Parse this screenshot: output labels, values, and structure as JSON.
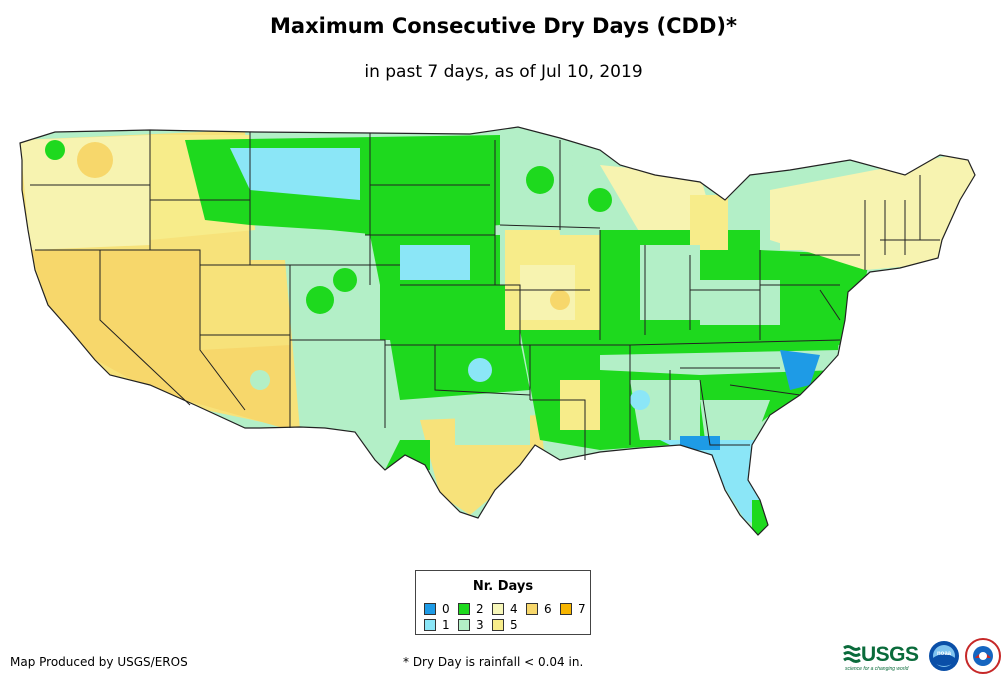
{
  "title": "Maximum Consecutive Dry Days (CDD)*",
  "subtitle": "in past 7 days, as of Jul 10, 2019",
  "legend": {
    "title": "Nr. Days",
    "items": [
      {
        "label": "0",
        "color": "#1e9be6"
      },
      {
        "label": "1",
        "color": "#8be6f7"
      },
      {
        "label": "2",
        "color": "#1ed91e"
      },
      {
        "label": "3",
        "color": "#b3efc7"
      },
      {
        "label": "4",
        "color": "#f7f7b9"
      },
      {
        "label": "5",
        "color": "#f7ec8a"
      },
      {
        "label": "6",
        "color": "#f7d76b"
      },
      {
        "label": "7",
        "color": "#f7b500"
      }
    ]
  },
  "footer": {
    "credit": "Map Produced by USGS/EROS",
    "footnote": "* Dry Day is rainfall < 0.04 in."
  },
  "logos": {
    "usgs_text": "USGS",
    "usgs_tagline": "science for a changing world",
    "noaa_text": "noaa"
  }
}
